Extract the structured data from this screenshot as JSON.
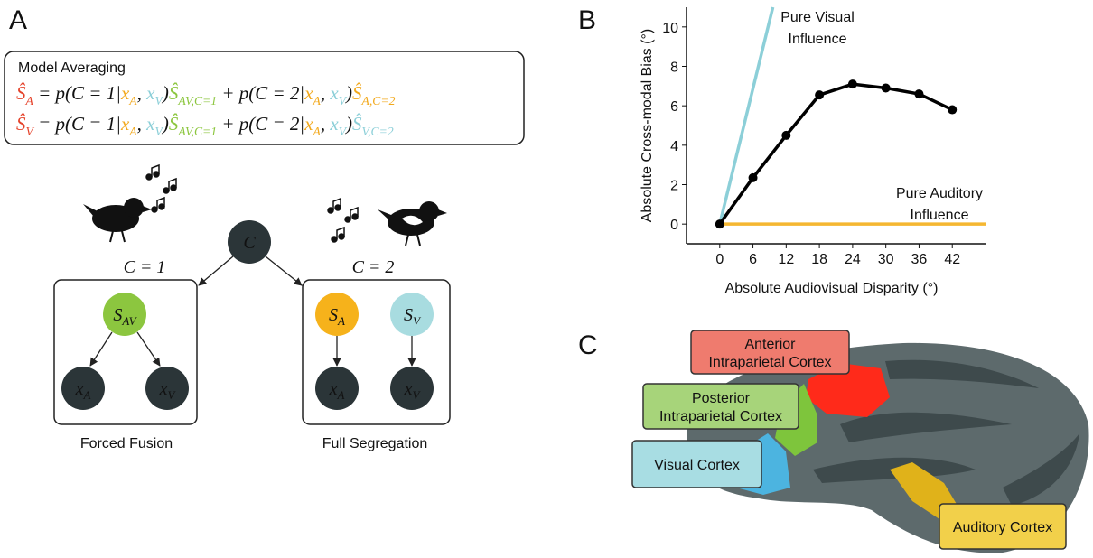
{
  "panels": [
    "A",
    "B",
    "C"
  ],
  "model_averaging": {
    "title": "Model Averaging",
    "equations": [
      [
        {
          "text": "Ŝ",
          "sub": "A",
          "color": "#e5432b"
        },
        {
          "text": " = p(C = 1|"
        },
        {
          "text": "x",
          "sub": "A",
          "color": "#f2a91d"
        },
        {
          "text": ", "
        },
        {
          "text": "x",
          "sub": "V",
          "color": "#8ccfd8"
        },
        {
          "text": ")"
        },
        {
          "text": "Ŝ",
          "sub": "AV,C=1",
          "color": "#8cc63f"
        },
        {
          "text": " + p(C = 2|"
        },
        {
          "text": "x",
          "sub": "A",
          "color": "#f2a91d"
        },
        {
          "text": ", "
        },
        {
          "text": "x",
          "sub": "V",
          "color": "#8ccfd8"
        },
        {
          "text": ")"
        },
        {
          "text": "Ŝ",
          "sub": "A,C=2",
          "color": "#f2a91d"
        }
      ],
      [
        {
          "text": "Ŝ",
          "sub": "V",
          "color": "#e5432b"
        },
        {
          "text": " = p(C = 1|"
        },
        {
          "text": "x",
          "sub": "A",
          "color": "#f2a91d"
        },
        {
          "text": ", "
        },
        {
          "text": "x",
          "sub": "V",
          "color": "#8ccfd8"
        },
        {
          "text": ")"
        },
        {
          "text": "Ŝ",
          "sub": "AV,C=1",
          "color": "#8cc63f"
        },
        {
          "text": " + p(C = 2|"
        },
        {
          "text": "x",
          "sub": "A",
          "color": "#f2a91d"
        },
        {
          "text": ", "
        },
        {
          "text": "x",
          "sub": "V",
          "color": "#8ccfd8"
        },
        {
          "text": ")"
        },
        {
          "text": "Ŝ",
          "sub": "V,C=2",
          "color": "#8ccfd8"
        }
      ]
    ]
  },
  "graph": {
    "nodes": [
      {
        "text": "C",
        "fill": "#2b3538",
        "color": "#ffffff"
      },
      {
        "text": "S",
        "sub": "AV",
        "fill": "#8cc63f",
        "color": "#1d2326"
      },
      {
        "text": "x",
        "sub": "A",
        "fill": "#2b3538",
        "color": "#f2a91d"
      },
      {
        "text": "x",
        "sub": "V",
        "fill": "#2b3538",
        "color": "#8ccfd8"
      },
      {
        "text": "S",
        "sub": "A",
        "fill": "#f6b21b",
        "color": "#1d2326"
      },
      {
        "text": "S",
        "sub": "V",
        "fill": "#a8dce0",
        "color": "#1d2326"
      },
      {
        "text": "x",
        "sub": "A",
        "fill": "#2b3538",
        "color": "#f2a91d"
      },
      {
        "text": "x",
        "sub": "V",
        "fill": "#2b3538",
        "color": "#8ccfd8"
      }
    ],
    "conditions": [
      "C = 1",
      "C = 2"
    ],
    "captions": [
      "Forced Fusion",
      "Full Segregation"
    ]
  },
  "chart_data": {
    "type": "line",
    "xlabel": "Absolute Audiovisual Disparity (°)",
    "ylabel": "Absolute Cross-modal Bias (°)",
    "xlim": [
      -6,
      48
    ],
    "ylim": [
      -1,
      11
    ],
    "xticks": [
      0,
      6,
      12,
      18,
      24,
      30,
      36,
      42
    ],
    "yticks": [
      0,
      2,
      4,
      6,
      8,
      10
    ],
    "series": [
      {
        "color": "#8ccfd8",
        "x": [
          0,
          9.6
        ],
        "values": [
          0,
          11
        ]
      },
      {
        "color": "#f5b731",
        "x": [
          0,
          48
        ],
        "values": [
          0,
          0
        ]
      },
      {
        "color": "#000000",
        "x": [
          0,
          6,
          12,
          18,
          24,
          30,
          36,
          42
        ],
        "values": [
          0,
          2.35,
          4.5,
          6.55,
          7.1,
          6.9,
          6.6,
          5.8
        ],
        "markers": true
      }
    ],
    "annotations": [
      {
        "lines": [
          "Pure Visual",
          "Influence"
        ]
      },
      {
        "lines": [
          "Pure Auditory",
          "Influence"
        ]
      }
    ]
  },
  "brain_regions": [
    {
      "lines": [
        "Anterior",
        "Intraparietal Cortex"
      ],
      "color": "#ef7b6e"
    },
    {
      "lines": [
        "Posterior",
        "Intraparietal Cortex"
      ],
      "color": "#a7d47a"
    },
    {
      "lines": [
        "Visual Cortex"
      ],
      "color": "#a8dde3"
    },
    {
      "lines": [
        "Auditory Cortex"
      ],
      "color": "#f2d04a"
    }
  ]
}
